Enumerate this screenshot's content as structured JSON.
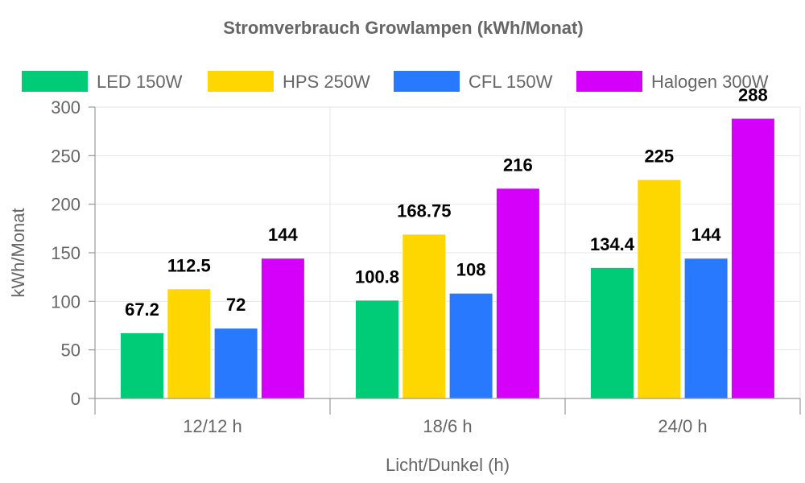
{
  "chart_data": {
    "type": "bar",
    "title": "Stromverbrauch Growlampen (kWh/Monat)",
    "xlabel": "Licht/Dunkel (h)",
    "ylabel": "kWh/Monat",
    "categories": [
      "12/12 h",
      "18/6 h",
      "24/0 h"
    ],
    "ylim": [
      0,
      300
    ],
    "yticks": [
      0,
      50,
      100,
      150,
      200,
      250,
      300
    ],
    "grid": true,
    "legend_position": "top",
    "series": [
      {
        "name": "LED 150W",
        "color": "#00cc77",
        "values": [
          67.2,
          100.8,
          134.4
        ],
        "labels": [
          "67.2",
          "100.8",
          "134.4"
        ]
      },
      {
        "name": "HPS 250W",
        "color": "#ffd700",
        "values": [
          112.5,
          168.75,
          225
        ],
        "labels": [
          "112.5",
          "168.75",
          "225"
        ]
      },
      {
        "name": "CFL 150W",
        "color": "#2979ff",
        "values": [
          72,
          108,
          144
        ],
        "labels": [
          "72",
          "108",
          "144"
        ]
      },
      {
        "name": "Halogen 300W",
        "color": "#d500f9",
        "values": [
          144,
          216,
          288
        ],
        "labels": [
          "144",
          "216",
          "288"
        ]
      }
    ]
  }
}
